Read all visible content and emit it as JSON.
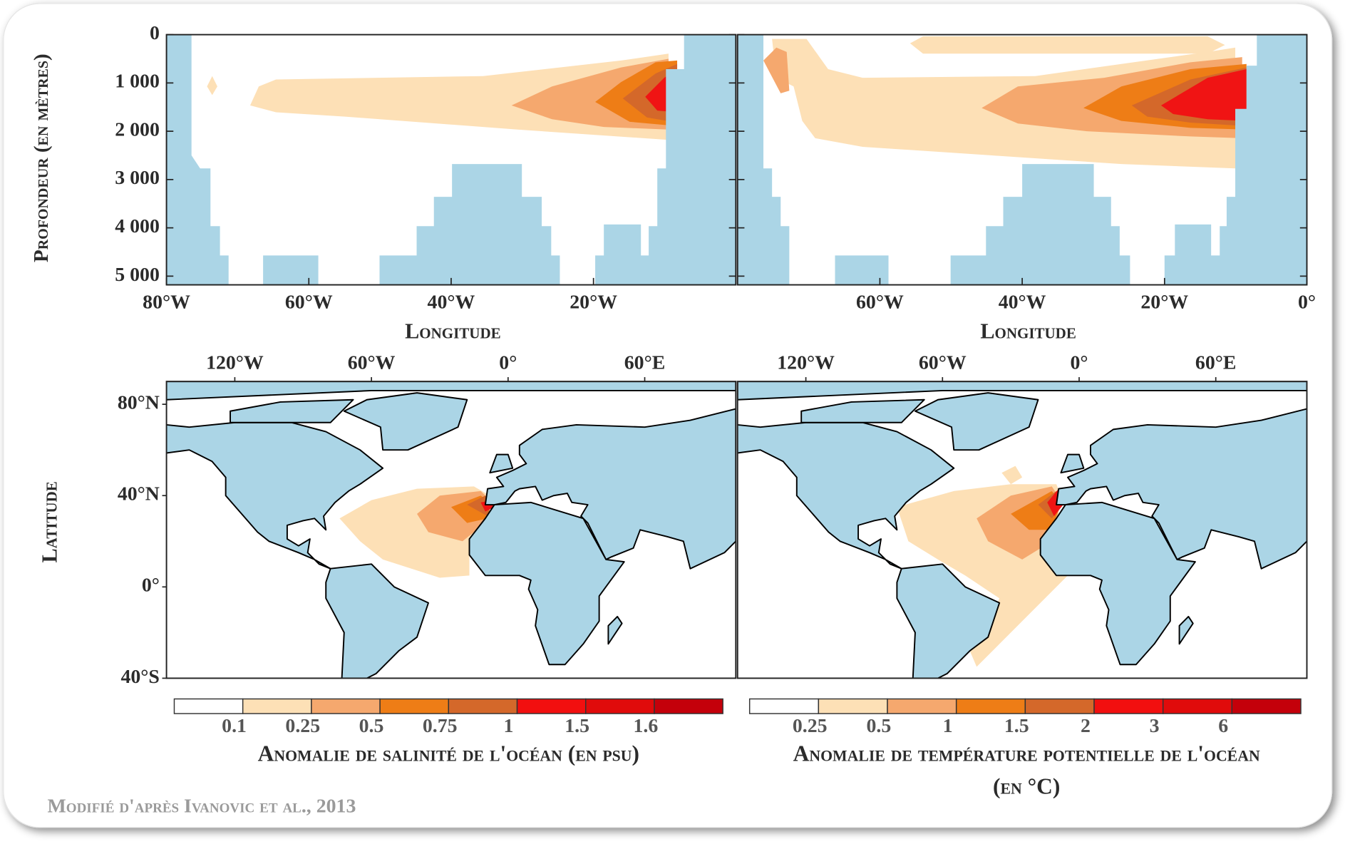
{
  "figure": {
    "credit": "Modifié d'après Ivanovic et al., 2013"
  },
  "chart_data": [
    {
      "type": "contour",
      "xlabel": "Longitude",
      "ylabel": "Profondeur (en mètres)",
      "xlim": [
        -80,
        0
      ],
      "ylim": [
        0,
        5180
      ],
      "y_inverted": true,
      "xticks": [
        {
          "value": -80,
          "label": "80°W"
        },
        {
          "value": -60,
          "label": "60°W"
        },
        {
          "value": -40,
          "label": "40°W"
        },
        {
          "value": -20,
          "label": "20°W"
        }
      ],
      "yticks": [
        0,
        {
          "value": 1000,
          "label": "1 000"
        },
        {
          "value": 2000,
          "label": "2 000"
        },
        {
          "value": 3000,
          "label": "3 000"
        },
        {
          "value": 4000,
          "label": "4 000"
        },
        {
          "value": 5000,
          "label": "5 000"
        }
      ]
    },
    {
      "type": "contour",
      "xlabel": "Longitude",
      "xlim": [
        -80,
        0
      ],
      "ylim": [
        0,
        5180
      ],
      "y_inverted": true,
      "xticks": [
        {
          "value": -60,
          "label": "60°W"
        },
        {
          "value": -40,
          "label": "40°W"
        },
        {
          "value": -20,
          "label": "20°W"
        },
        {
          "value": 0,
          "label": "0°"
        }
      ]
    },
    {
      "type": "map",
      "ylabel": "Latitude",
      "xlim": [
        -150,
        100
      ],
      "ylim": [
        -40,
        90
      ],
      "xticks": [
        {
          "value": -120,
          "label": "120°W"
        },
        {
          "value": -60,
          "label": "60°W"
        },
        {
          "value": 0,
          "label": "0°"
        },
        {
          "value": 60,
          "label": "60°E"
        }
      ],
      "yticks": [
        {
          "value": 80,
          "label": "80°N"
        },
        {
          "value": 40,
          "label": "40°N"
        },
        {
          "value": 0,
          "label": "0°"
        },
        {
          "value": -40,
          "label": "40°S"
        }
      ]
    },
    {
      "type": "map",
      "xlim": [
        -150,
        100
      ],
      "ylim": [
        -40,
        90
      ],
      "xticks": [
        {
          "value": -120,
          "label": "120°W"
        },
        {
          "value": -60,
          "label": "60°W"
        },
        {
          "value": 0,
          "label": "0°"
        },
        {
          "value": 60,
          "label": "60°E"
        }
      ]
    }
  ],
  "colorbars": [
    {
      "label": "Anomalie de salinité de l'océan (en psu)",
      "ticks": [
        0.1,
        0.25,
        0.5,
        0.75,
        1,
        1.5,
        1.6
      ],
      "colors": [
        "#ffffff",
        "#fde0b6",
        "#f5a86e",
        "#ee7d16",
        "#d4682a",
        "#f20f0f",
        "#e00b0b",
        "#c4000a"
      ]
    },
    {
      "label": "Anomalie de température potentielle de l'océan (en °C)",
      "ticks": [
        0.25,
        0.5,
        1,
        1.5,
        2,
        3,
        6
      ],
      "colors": [
        "#ffffff",
        "#fde0b6",
        "#f5a86e",
        "#ee7d16",
        "#d4682a",
        "#f20f0f",
        "#e00b0b",
        "#c4000a"
      ]
    }
  ]
}
